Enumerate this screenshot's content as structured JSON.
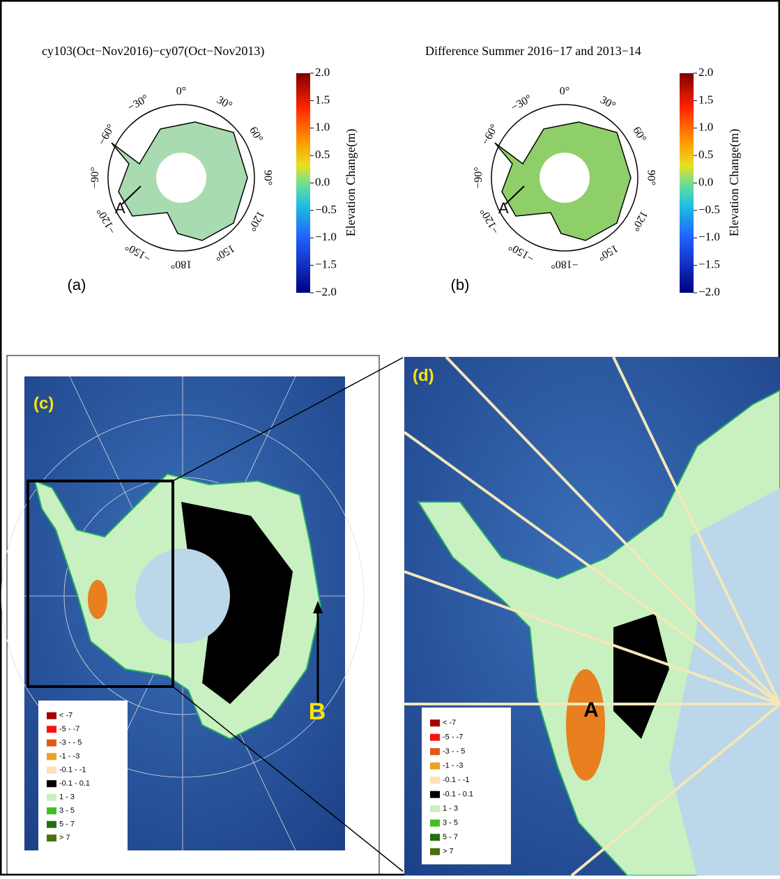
{
  "panels": [
    {
      "title": "cy103(Oct−Nov2016)−cy07(Oct−Nov2013)",
      "label": "(a)",
      "marker": "A",
      "longitudes": [
        "0°",
        "30°",
        "60°",
        "90°",
        "120°",
        "150°",
        "180°",
        "150°",
        "120°",
        "90°",
        "60°",
        "30°"
      ],
      "west_prefix": "−"
    },
    {
      "title": "Difference Summer 2016−17 and 2013−14",
      "label": "(b)",
      "marker": "A",
      "longitudes": [
        "0°",
        "30°",
        "60°",
        "90°",
        "120°",
        "150°",
        "−180°",
        "150°",
        "120°",
        "90°",
        "60°",
        "30°"
      ],
      "west_prefix": "−"
    }
  ],
  "colorbar": {
    "label": "Elevation Change(m)",
    "ticks": [
      "2.0",
      "1.5",
      "1.0",
      "0.5",
      "0.0",
      "−0.5",
      "−1.0",
      "−1.5",
      "−2.0"
    ]
  },
  "map_c": {
    "label": "(c)",
    "marker": "B"
  },
  "map_d": {
    "label": "(d)",
    "marker": "A"
  },
  "legend": [
    {
      "text": "< -7",
      "color": "#a50000"
    },
    {
      "text": "-5 - -7",
      "color": "#ff1010"
    },
    {
      "text": "-3 - - 5",
      "color": "#e05a10"
    },
    {
      "text": "-1 - -3",
      "color": "#f0a020"
    },
    {
      "text": "-0.1 - -1",
      "color": "#fde0b8"
    },
    {
      "text": "-0.1 - 0.1",
      "color": "#000000"
    },
    {
      "text": "1 - 3",
      "color": "#c8f0c0"
    },
    {
      "text": "3 - 5",
      "color": "#40c020"
    },
    {
      "text": "5 - 7",
      "color": "#207010"
    },
    {
      "text": "> 7",
      "color": "#4a7010"
    }
  ]
}
